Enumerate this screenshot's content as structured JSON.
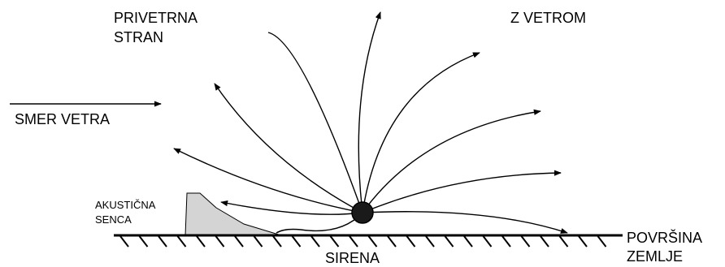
{
  "labels": {
    "upwind": [
      "PRIVETRNA",
      "STRAN"
    ],
    "downwind": "Z VETROM",
    "wind_direction": "SMER VETRA",
    "acoustic_shadow": [
      "AKUSTIČNA",
      "SENCA"
    ],
    "siren": "SIRENA",
    "ground_surface": [
      "POVRŠINA",
      "ZEMLJE"
    ]
  }
}
